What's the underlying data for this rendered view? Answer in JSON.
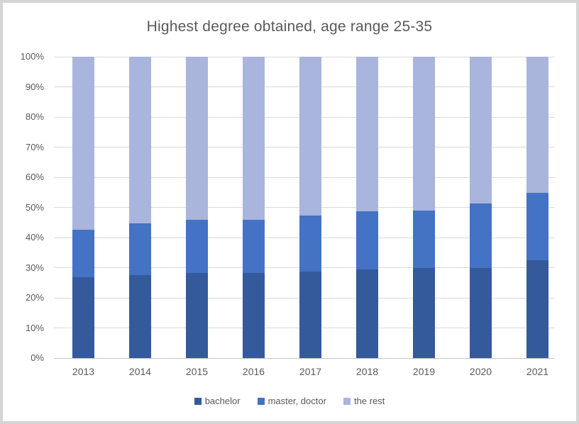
{
  "page": {
    "background": "#ffffff",
    "frame_border_color": "#d5d5d5"
  },
  "chart_data": {
    "type": "bar",
    "subtype": "100%-stacked-column",
    "title": "Highest degree obtained, age range 25-35",
    "categories": [
      "2013",
      "2014",
      "2015",
      "2016",
      "2017",
      "2018",
      "2019",
      "2020",
      "2021"
    ],
    "series": [
      {
        "name": "bachelor",
        "color": "#345a9c",
        "values": [
          26.9,
          27.6,
          28.2,
          28.3,
          28.7,
          29.4,
          29.8,
          30.0,
          32.5
        ]
      },
      {
        "name": "master, doctor",
        "color": "#4472c4",
        "values": [
          15.6,
          17.1,
          17.6,
          17.5,
          18.5,
          19.2,
          19.1,
          21.4,
          22.3
        ]
      },
      {
        "name": "the rest",
        "color": "#a9b5dc",
        "values": [
          57.5,
          55.3,
          54.2,
          54.2,
          52.8,
          51.4,
          51.1,
          48.6,
          45.2
        ]
      }
    ],
    "y_axis": {
      "min": 0,
      "max": 100,
      "step": 10,
      "tick_labels": [
        "0%",
        "10%",
        "20%",
        "30%",
        "40%",
        "50%",
        "60%",
        "70%",
        "80%",
        "90%",
        "100%"
      ]
    },
    "legend": {
      "position": "bottom",
      "entries": [
        "bachelor",
        "master, doctor",
        "the rest"
      ]
    },
    "grid": true,
    "gridline_color": "#d9d9d9",
    "axis_line_color": "#c3c3c3",
    "text_color": "#595959"
  }
}
